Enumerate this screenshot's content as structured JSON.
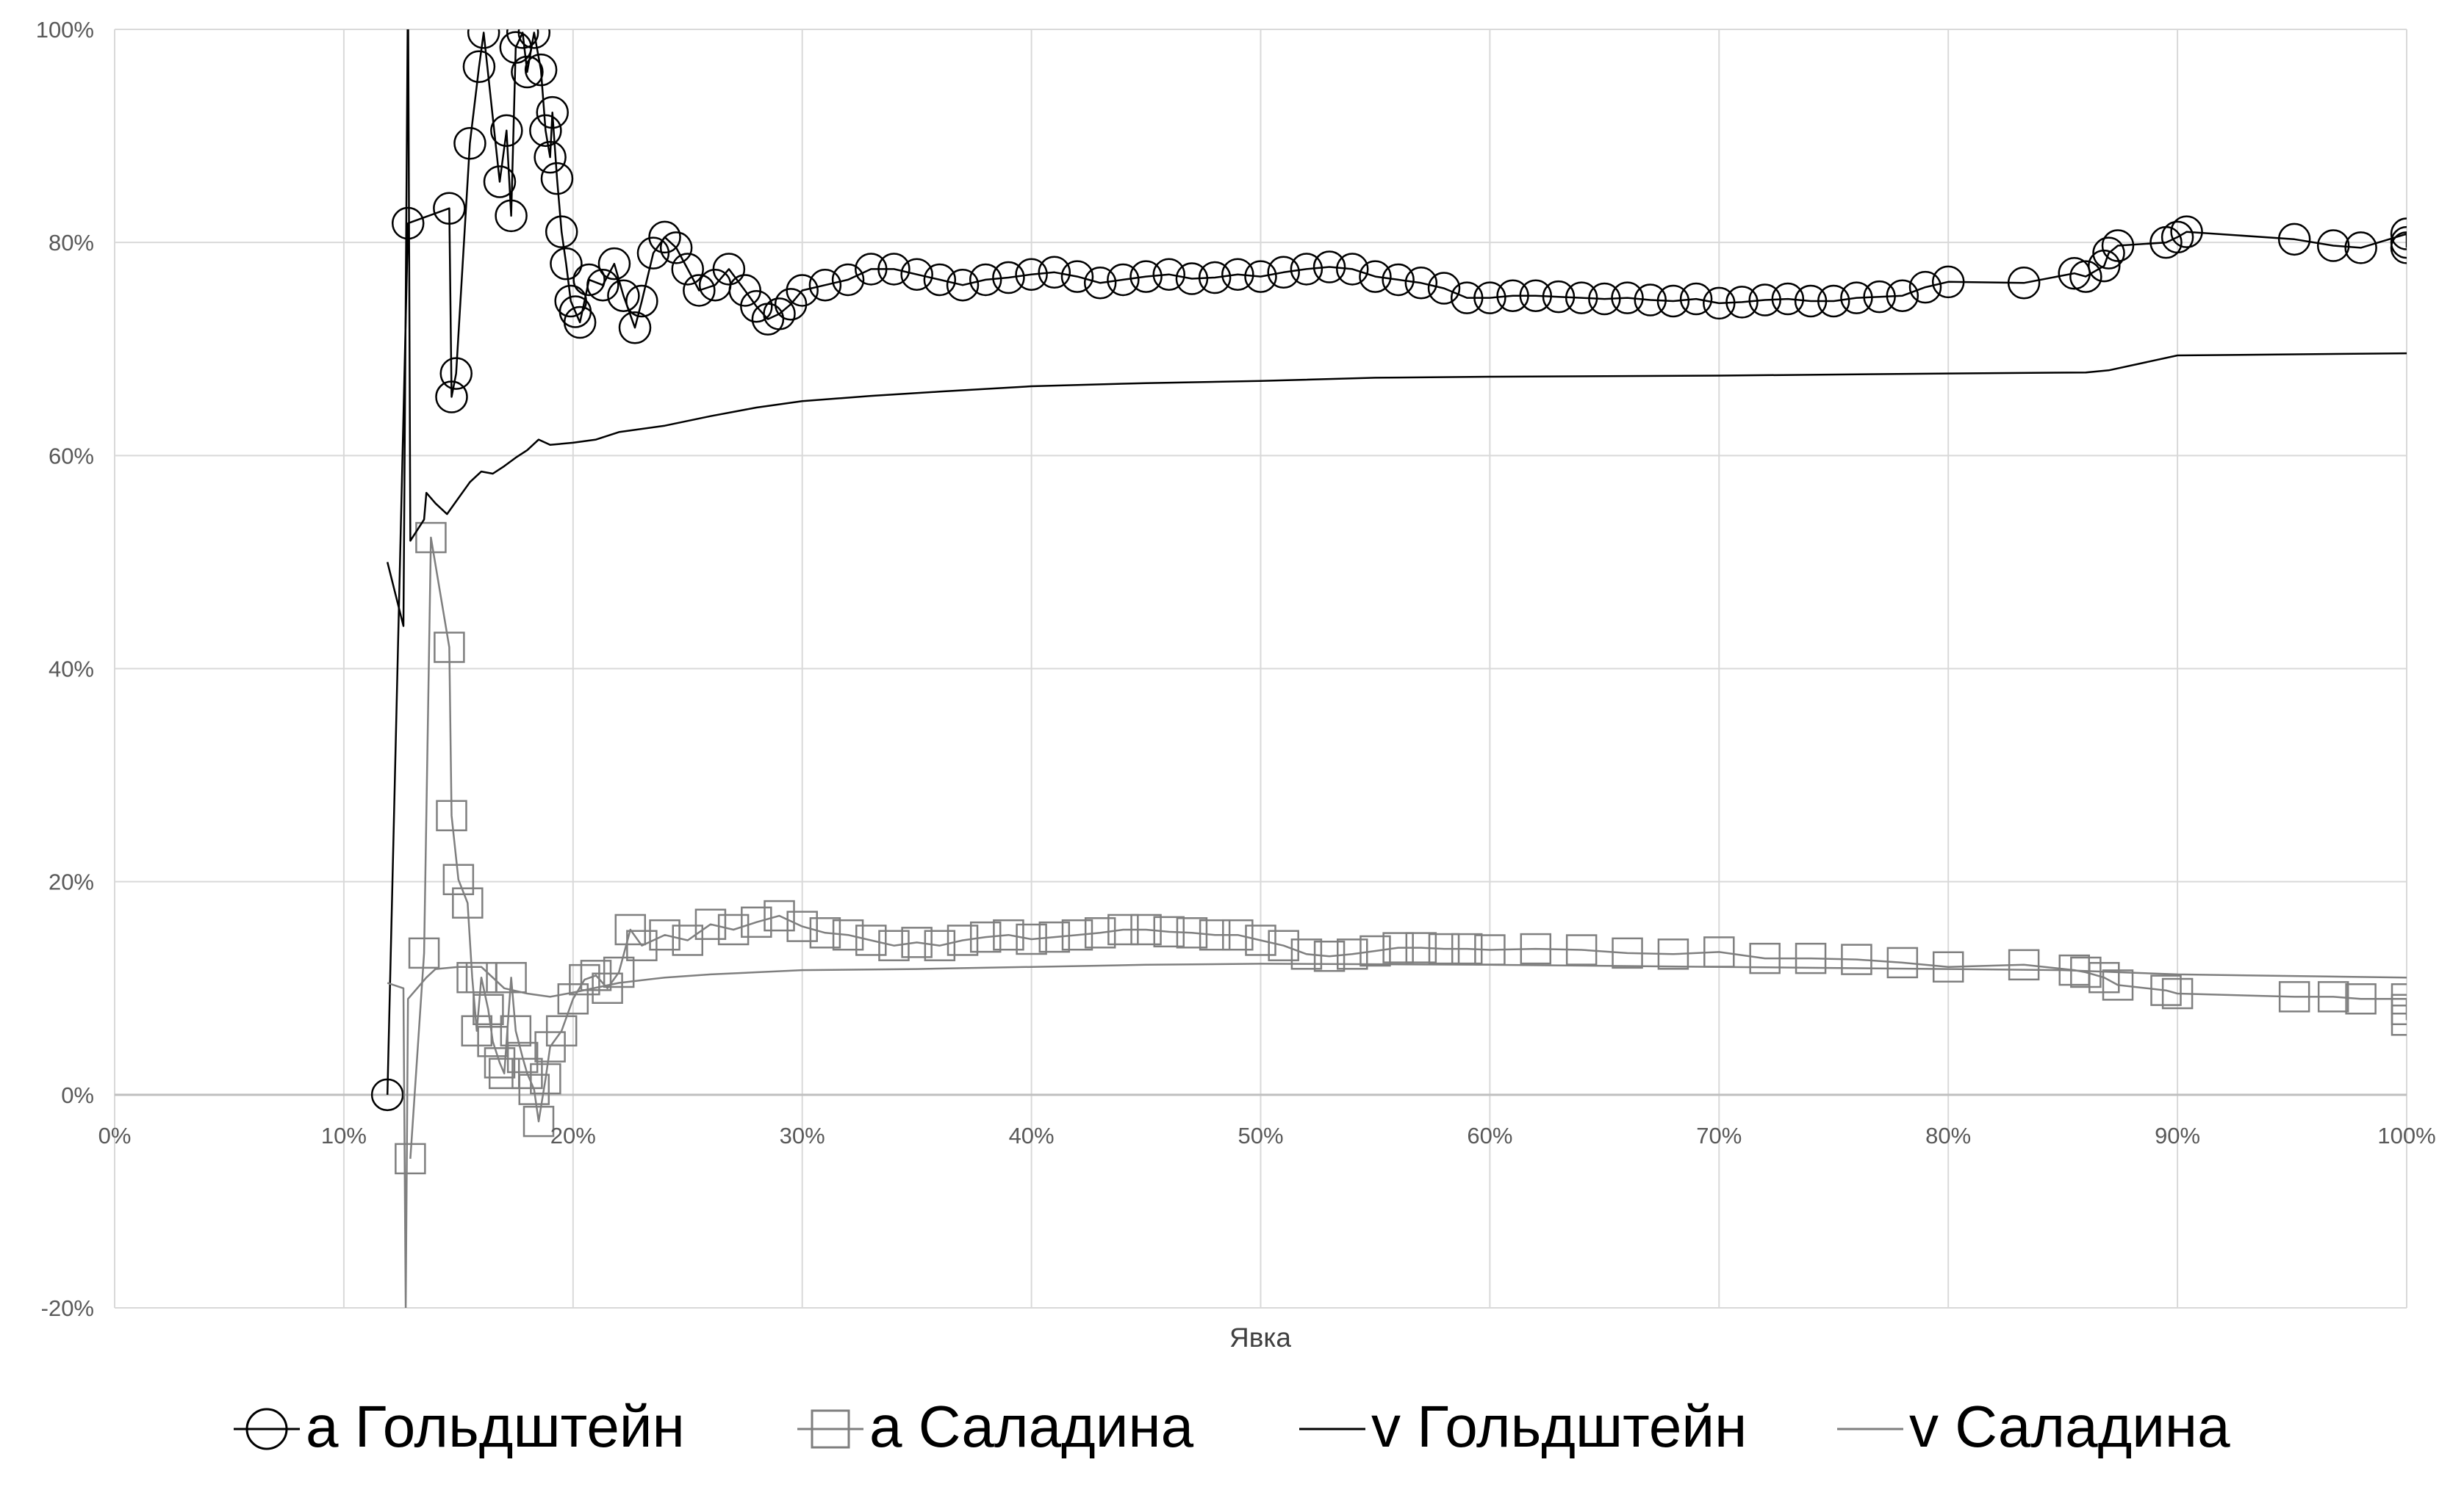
{
  "chart_data": {
    "type": "scatter",
    "title": "",
    "xlabel": "Явка",
    "ylabel": "",
    "xlim": [
      0,
      1
    ],
    "ylim": [
      -0.2,
      1.0
    ],
    "x_ticks": [
      0,
      0.1,
      0.2,
      0.3,
      0.4,
      0.5,
      0.6,
      0.7,
      0.8,
      0.9,
      1.0
    ],
    "x_tick_labels": [
      "0%",
      "10%",
      "20%",
      "30%",
      "40%",
      "50%",
      "60%",
      "70%",
      "80%",
      "90%",
      "100%"
    ],
    "y_ticks": [
      -0.2,
      0,
      0.2,
      0.4,
      0.6,
      0.8,
      1.0
    ],
    "y_tick_labels": [
      "-20%",
      "0%",
      "20%",
      "40%",
      "60%",
      "80%",
      "100%"
    ],
    "grid": true,
    "legend_position": "bottom",
    "colors": {
      "black": "#000000",
      "gray": "#7f7f7f",
      "grid": "#d9d9d9"
    },
    "series": [
      {
        "name": "a Гольдштейн",
        "kind": "line-markers",
        "marker": "circle",
        "color": "#000000",
        "points": [
          [
            0.119,
            0.0
          ],
          [
            0.128,
            0.818
          ],
          [
            0.146,
            0.832
          ],
          [
            0.147,
            0.655
          ],
          [
            0.149,
            0.677
          ],
          [
            0.155,
            0.893
          ],
          [
            0.159,
            0.965
          ],
          [
            0.161,
            0.997
          ],
          [
            0.168,
            0.857
          ],
          [
            0.171,
            0.905
          ],
          [
            0.173,
            0.825
          ],
          [
            0.175,
            0.983
          ],
          [
            0.178,
            0.997
          ],
          [
            0.18,
            0.96
          ],
          [
            0.183,
            0.997
          ],
          [
            0.186,
            0.962
          ],
          [
            0.188,
            0.905
          ],
          [
            0.19,
            0.88
          ],
          [
            0.191,
            0.922
          ],
          [
            0.193,
            0.86
          ],
          [
            0.195,
            0.81
          ],
          [
            0.197,
            0.78
          ],
          [
            0.199,
            0.745
          ],
          [
            0.201,
            0.735
          ],
          [
            0.203,
            0.725
          ],
          [
            0.207,
            0.765
          ],
          [
            0.213,
            0.76
          ],
          [
            0.218,
            0.78
          ],
          [
            0.222,
            0.75
          ],
          [
            0.227,
            0.72
          ],
          [
            0.23,
            0.745
          ],
          [
            0.235,
            0.79
          ],
          [
            0.24,
            0.805
          ],
          [
            0.245,
            0.795
          ],
          [
            0.25,
            0.775
          ],
          [
            0.255,
            0.755
          ],
          [
            0.262,
            0.76
          ],
          [
            0.268,
            0.775
          ],
          [
            0.275,
            0.755
          ],
          [
            0.28,
            0.74
          ],
          [
            0.285,
            0.728
          ],
          [
            0.29,
            0.733
          ],
          [
            0.295,
            0.742
          ],
          [
            0.3,
            0.755
          ],
          [
            0.31,
            0.76
          ],
          [
            0.32,
            0.765
          ],
          [
            0.33,
            0.775
          ],
          [
            0.34,
            0.775
          ],
          [
            0.35,
            0.77
          ],
          [
            0.36,
            0.765
          ],
          [
            0.37,
            0.76
          ],
          [
            0.38,
            0.765
          ],
          [
            0.39,
            0.767
          ],
          [
            0.4,
            0.77
          ],
          [
            0.41,
            0.772
          ],
          [
            0.42,
            0.768
          ],
          [
            0.43,
            0.762
          ],
          [
            0.44,
            0.765
          ],
          [
            0.45,
            0.768
          ],
          [
            0.46,
            0.77
          ],
          [
            0.47,
            0.766
          ],
          [
            0.48,
            0.767
          ],
          [
            0.49,
            0.77
          ],
          [
            0.5,
            0.768
          ],
          [
            0.51,
            0.772
          ],
          [
            0.52,
            0.775
          ],
          [
            0.53,
            0.777
          ],
          [
            0.54,
            0.775
          ],
          [
            0.55,
            0.768
          ],
          [
            0.56,
            0.765
          ],
          [
            0.57,
            0.762
          ],
          [
            0.58,
            0.757
          ],
          [
            0.59,
            0.748
          ],
          [
            0.6,
            0.748
          ],
          [
            0.61,
            0.75
          ],
          [
            0.62,
            0.75
          ],
          [
            0.63,
            0.749
          ],
          [
            0.64,
            0.748
          ],
          [
            0.65,
            0.747
          ],
          [
            0.66,
            0.748
          ],
          [
            0.67,
            0.746
          ],
          [
            0.68,
            0.745
          ],
          [
            0.69,
            0.747
          ],
          [
            0.7,
            0.743
          ],
          [
            0.71,
            0.744
          ],
          [
            0.72,
            0.746
          ],
          [
            0.73,
            0.747
          ],
          [
            0.74,
            0.745
          ],
          [
            0.75,
            0.745
          ],
          [
            0.76,
            0.748
          ],
          [
            0.77,
            0.749
          ],
          [
            0.78,
            0.75
          ],
          [
            0.79,
            0.758
          ],
          [
            0.8,
            0.763
          ],
          [
            0.833,
            0.762
          ],
          [
            0.855,
            0.771
          ],
          [
            0.86,
            0.768
          ],
          [
            0.868,
            0.778
          ],
          [
            0.87,
            0.79
          ],
          [
            0.874,
            0.797
          ],
          [
            0.895,
            0.8
          ],
          [
            0.9,
            0.805
          ],
          [
            0.904,
            0.81
          ],
          [
            0.951,
            0.803
          ],
          [
            0.968,
            0.797
          ],
          [
            0.98,
            0.795
          ],
          [
            1.0,
            0.808
          ],
          [
            1.0,
            0.8
          ],
          [
            1.0,
            0.795
          ]
        ]
      },
      {
        "name": "a Саладина",
        "kind": "line-markers",
        "marker": "square",
        "color": "#7f7f7f",
        "points": [
          [
            0.129,
            -0.06
          ],
          [
            0.135,
            0.133
          ],
          [
            0.138,
            0.523
          ],
          [
            0.146,
            0.42
          ],
          [
            0.147,
            0.262
          ],
          [
            0.15,
            0.202
          ],
          [
            0.154,
            0.18
          ],
          [
            0.156,
            0.11
          ],
          [
            0.158,
            0.06
          ],
          [
            0.16,
            0.11
          ],
          [
            0.163,
            0.08
          ],
          [
            0.165,
            0.05
          ],
          [
            0.168,
            0.03
          ],
          [
            0.17,
            0.02
          ],
          [
            0.173,
            0.11
          ],
          [
            0.175,
            0.06
          ],
          [
            0.178,
            0.035
          ],
          [
            0.18,
            0.02
          ],
          [
            0.183,
            0.005
          ],
          [
            0.185,
            -0.025
          ],
          [
            0.188,
            0.015
          ],
          [
            0.19,
            0.045
          ],
          [
            0.195,
            0.06
          ],
          [
            0.2,
            0.09
          ],
          [
            0.205,
            0.108
          ],
          [
            0.21,
            0.112
          ],
          [
            0.215,
            0.1
          ],
          [
            0.22,
            0.115
          ],
          [
            0.225,
            0.155
          ],
          [
            0.23,
            0.14
          ],
          [
            0.24,
            0.15
          ],
          [
            0.25,
            0.145
          ],
          [
            0.26,
            0.16
          ],
          [
            0.27,
            0.155
          ],
          [
            0.28,
            0.162
          ],
          [
            0.29,
            0.168
          ],
          [
            0.3,
            0.158
          ],
          [
            0.31,
            0.152
          ],
          [
            0.32,
            0.15
          ],
          [
            0.33,
            0.145
          ],
          [
            0.34,
            0.14
          ],
          [
            0.35,
            0.143
          ],
          [
            0.36,
            0.14
          ],
          [
            0.37,
            0.145
          ],
          [
            0.38,
            0.148
          ],
          [
            0.39,
            0.15
          ],
          [
            0.4,
            0.146
          ],
          [
            0.41,
            0.148
          ],
          [
            0.42,
            0.15
          ],
          [
            0.43,
            0.152
          ],
          [
            0.44,
            0.155
          ],
          [
            0.45,
            0.155
          ],
          [
            0.46,
            0.153
          ],
          [
            0.47,
            0.152
          ],
          [
            0.48,
            0.15
          ],
          [
            0.49,
            0.15
          ],
          [
            0.5,
            0.145
          ],
          [
            0.51,
            0.14
          ],
          [
            0.52,
            0.132
          ],
          [
            0.53,
            0.13
          ],
          [
            0.54,
            0.132
          ],
          [
            0.55,
            0.135
          ],
          [
            0.56,
            0.138
          ],
          [
            0.57,
            0.138
          ],
          [
            0.58,
            0.137
          ],
          [
            0.59,
            0.137
          ],
          [
            0.6,
            0.136
          ],
          [
            0.62,
            0.137
          ],
          [
            0.64,
            0.136
          ],
          [
            0.66,
            0.133
          ],
          [
            0.68,
            0.132
          ],
          [
            0.7,
            0.134
          ],
          [
            0.72,
            0.128
          ],
          [
            0.74,
            0.128
          ],
          [
            0.76,
            0.127
          ],
          [
            0.78,
            0.124
          ],
          [
            0.8,
            0.12
          ],
          [
            0.833,
            0.122
          ],
          [
            0.855,
            0.117
          ],
          [
            0.86,
            0.115
          ],
          [
            0.868,
            0.11
          ],
          [
            0.874,
            0.103
          ],
          [
            0.895,
            0.098
          ],
          [
            0.9,
            0.095
          ],
          [
            0.951,
            0.092
          ],
          [
            0.968,
            0.092
          ],
          [
            0.98,
            0.09
          ],
          [
            1.0,
            0.09
          ],
          [
            1.0,
            0.08
          ],
          [
            1.0,
            0.07
          ]
        ]
      },
      {
        "name": "v Гольдштейн",
        "kind": "line",
        "color": "#000000",
        "points": [
          [
            0.119,
            0.5
          ],
          [
            0.126,
            0.44
          ],
          [
            0.128,
            1.05
          ],
          [
            0.129,
            0.52
          ],
          [
            0.135,
            0.54
          ],
          [
            0.136,
            0.565
          ],
          [
            0.14,
            0.555
          ],
          [
            0.145,
            0.545
          ],
          [
            0.15,
            0.56
          ],
          [
            0.155,
            0.575
          ],
          [
            0.16,
            0.585
          ],
          [
            0.165,
            0.583
          ],
          [
            0.17,
            0.59
          ],
          [
            0.175,
            0.598
          ],
          [
            0.18,
            0.605
          ],
          [
            0.185,
            0.615
          ],
          [
            0.19,
            0.61
          ],
          [
            0.2,
            0.612
          ],
          [
            0.21,
            0.615
          ],
          [
            0.22,
            0.622
          ],
          [
            0.24,
            0.628
          ],
          [
            0.26,
            0.637
          ],
          [
            0.28,
            0.645
          ],
          [
            0.3,
            0.651
          ],
          [
            0.33,
            0.656
          ],
          [
            0.36,
            0.66
          ],
          [
            0.4,
            0.665
          ],
          [
            0.45,
            0.668
          ],
          [
            0.5,
            0.67
          ],
          [
            0.55,
            0.673
          ],
          [
            0.6,
            0.674
          ],
          [
            0.7,
            0.675
          ],
          [
            0.8,
            0.677
          ],
          [
            0.86,
            0.678
          ],
          [
            0.87,
            0.68
          ],
          [
            0.9,
            0.694
          ],
          [
            1.0,
            0.696
          ]
        ]
      },
      {
        "name": "v Саладина",
        "kind": "line",
        "color": "#7f7f7f",
        "points": [
          [
            0.119,
            0.105
          ],
          [
            0.126,
            0.1
          ],
          [
            0.127,
            -0.2
          ],
          [
            0.128,
            0.09
          ],
          [
            0.132,
            0.1
          ],
          [
            0.136,
            0.11
          ],
          [
            0.14,
            0.118
          ],
          [
            0.15,
            0.12
          ],
          [
            0.16,
            0.12
          ],
          [
            0.17,
            0.1
          ],
          [
            0.18,
            0.095
          ],
          [
            0.19,
            0.092
          ],
          [
            0.2,
            0.096
          ],
          [
            0.22,
            0.105
          ],
          [
            0.24,
            0.11
          ],
          [
            0.26,
            0.113
          ],
          [
            0.28,
            0.115
          ],
          [
            0.3,
            0.117
          ],
          [
            0.35,
            0.118
          ],
          [
            0.4,
            0.12
          ],
          [
            0.45,
            0.122
          ],
          [
            0.5,
            0.123
          ],
          [
            0.6,
            0.122
          ],
          [
            0.7,
            0.12
          ],
          [
            0.8,
            0.118
          ],
          [
            0.85,
            0.117
          ],
          [
            0.9,
            0.113
          ],
          [
            1.0,
            0.11
          ]
        ]
      }
    ]
  }
}
